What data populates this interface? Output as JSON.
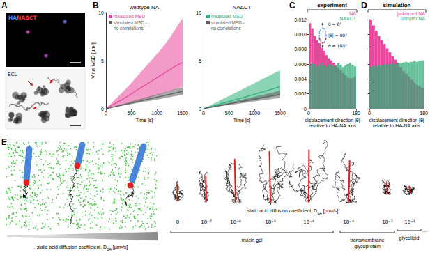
{
  "panel_labels": [
    "A",
    "B",
    "C",
    "D",
    "E"
  ],
  "panel_a": {
    "merge_label": [
      {
        "text": "HA",
        "color": "#4a8cff"
      },
      {
        "text": "NAΔCT",
        "color": "#ff3b3b"
      }
    ],
    "ecl_label": "ECL"
  },
  "headers": [
    "experiment",
    "simulation"
  ],
  "inset": {
    "labels": [
      "θ = 0°",
      "|θ| = 90°",
      "θ = 180°"
    ]
  },
  "panel_e": {
    "axis_label": {
      "text": "sialic acid diffusion coefficient, D",
      "subscript": "SA",
      "after": " [µm²/s]"
    },
    "coefficients": [
      "0",
      "10⁻⁷",
      "10⁻⁶",
      "10⁻⁵",
      "10⁻⁴",
      "10⁻³",
      "10⁻²",
      "10⁻¹"
    ],
    "groups": [
      {
        "lines": [
          "mucin gel"
        ]
      },
      {
        "lines": [
          "transmembrane",
          "glycoprotein"
        ]
      },
      {
        "lines": [
          "glycolipid"
        ]
      }
    ],
    "continuation": "..."
  },
  "chart_data": [
    {
      "type": "line",
      "title": "wildtype NA",
      "xlabel": "Time [s]",
      "ylabel": "Virus MSD [µm²]",
      "x": [
        0,
        150,
        300,
        450,
        600,
        750,
        900,
        1050,
        1200,
        1350,
        1500
      ],
      "series": [
        {
          "name": "measured MSD",
          "color": "#e8489b",
          "values": [
            0,
            0.45,
            0.9,
            1.4,
            1.9,
            2.4,
            2.9,
            3.4,
            3.9,
            4.4,
            4.8
          ],
          "lower": [
            0,
            0.2,
            0.4,
            0.6,
            0.8,
            1.0,
            1.25,
            1.5,
            1.75,
            2.0,
            2.3
          ],
          "upper": [
            0,
            0.8,
            1.6,
            2.4,
            3.3,
            4.2,
            5.1,
            6.0,
            7.0,
            8.2,
            9.4
          ]
        },
        {
          "name": "simulated MSD - no correlations",
          "color": "#606060",
          "values": [
            0,
            0.18,
            0.36,
            0.54,
            0.72,
            0.9,
            1.08,
            1.26,
            1.44,
            1.62,
            1.8
          ],
          "lower": [
            0,
            0.14,
            0.29,
            0.43,
            0.58,
            0.72,
            0.86,
            1.0,
            1.15,
            1.3,
            1.44
          ],
          "upper": [
            0,
            0.23,
            0.45,
            0.68,
            0.9,
            1.13,
            1.35,
            1.58,
            1.8,
            2.03,
            2.25
          ]
        }
      ],
      "xlim": [
        0,
        1500
      ],
      "xticks": [
        0,
        500,
        1000,
        1500
      ],
      "ylim": [
        0,
        10
      ],
      "yticks": [
        0,
        5,
        10
      ],
      "grid": false,
      "legend": "top-left"
    },
    {
      "type": "line",
      "title": "NAΔCT",
      "xlabel": "Time [s]",
      "x": [
        0,
        150,
        300,
        450,
        600,
        750,
        900,
        1050,
        1200,
        1350,
        1500
      ],
      "series": [
        {
          "name": "measured MSD",
          "color": "#2fae78",
          "values": [
            0,
            0.22,
            0.45,
            0.68,
            0.9,
            1.12,
            1.35,
            1.58,
            1.8,
            2.05,
            2.3
          ],
          "lower": [
            0,
            0.13,
            0.27,
            0.4,
            0.55,
            0.68,
            0.82,
            0.95,
            1.1,
            1.25,
            1.4
          ],
          "upper": [
            0,
            0.4,
            0.8,
            1.2,
            1.6,
            2.0,
            2.4,
            2.8,
            3.2,
            3.6,
            4.0
          ]
        },
        {
          "name": "simulated MSD - no correlations",
          "color": "#606060",
          "values": [
            0,
            0.15,
            0.3,
            0.45,
            0.6,
            0.75,
            0.9,
            1.05,
            1.2,
            1.35,
            1.5
          ],
          "lower": [
            0,
            0.11,
            0.23,
            0.34,
            0.45,
            0.56,
            0.68,
            0.79,
            0.9,
            1.01,
            1.13
          ],
          "upper": [
            0,
            0.19,
            0.38,
            0.56,
            0.75,
            0.94,
            1.13,
            1.31,
            1.5,
            1.69,
            1.88
          ]
        }
      ],
      "xlim": [
        0,
        1500
      ],
      "xticks": [
        0,
        500,
        1000,
        1500
      ],
      "ylim": [
        0,
        10
      ],
      "yticks": [
        0,
        5,
        10
      ],
      "grid": false,
      "legend": "top-left"
    },
    {
      "type": "histogram",
      "xlabel": "displacement direction |θ|\nrelative to HA-NA axis",
      "bins": [
        0,
        9,
        18,
        27,
        36,
        45,
        54,
        63,
        72,
        81,
        90,
        99,
        108,
        117,
        126,
        135,
        144,
        153,
        162,
        171,
        180
      ],
      "series": [
        {
          "name": "NA",
          "color": "#e8489b",
          "values": [
            0.0115,
            0.0108,
            0.0098,
            0.0092,
            0.0088,
            0.0082,
            0.0078,
            0.0072,
            0.0068,
            0.0065,
            0.0062,
            0.0058,
            0.0055,
            0.0052,
            0.0048,
            0.0045,
            0.0042,
            0.004,
            0.0041,
            0.0043
          ]
        },
        {
          "name": "NAΔCT",
          "color": "#2fae78",
          "values": [
            0.0058,
            0.0062,
            0.006,
            0.0057,
            0.0059,
            0.0061,
            0.0058,
            0.0056,
            0.006,
            0.0059,
            0.0057,
            0.0058,
            0.0061,
            0.0059,
            0.0056,
            0.0058,
            0.006,
            0.0062,
            0.0059,
            0.0057
          ]
        }
      ],
      "xlim": [
        0,
        180
      ],
      "xticks": [
        0,
        180
      ],
      "ylim": [
        0,
        0.012
      ],
      "yticks": [
        0,
        0.002,
        0.004,
        0.006,
        0.008,
        {
          "value": 0.01,
          "label": "0.010"
        },
        0.012
      ],
      "grid": false,
      "legend": "top-right"
    },
    {
      "type": "histogram",
      "xlabel": "displacement direction |θ|\nrelative to HA-NA axis",
      "bins": [
        0,
        9,
        18,
        27,
        36,
        45,
        54,
        63,
        72,
        81,
        90,
        99,
        108,
        117,
        126,
        135,
        144,
        153,
        162,
        171,
        180
      ],
      "series": [
        {
          "name": "polarized NA",
          "color": "#e8489b",
          "values": [
            0.012,
            0.0112,
            0.0105,
            0.0098,
            0.0092,
            0.0087,
            0.0081,
            0.0076,
            0.0071,
            0.0066,
            0.0061,
            0.0056,
            0.0051,
            0.0047,
            0.0043,
            0.0039,
            0.0035,
            0.0032,
            0.003,
            0.0028
          ]
        },
        {
          "name": "uniform NA",
          "color": "#2fae78",
          "values": [
            0.0056,
            0.0058,
            0.0057,
            0.0059,
            0.0058,
            0.006,
            0.0059,
            0.006,
            0.0061,
            0.006,
            0.0062,
            0.0061,
            0.0062,
            0.0063,
            0.0062,
            0.0063,
            0.0064,
            0.0063,
            0.0064,
            0.0065
          ]
        }
      ],
      "xlim": [
        0,
        180
      ],
      "xticks": [
        0,
        180
      ],
      "ylim": [
        0,
        0.012
      ],
      "yticks": [
        0,
        0.002,
        0.004,
        0.006,
        0.008,
        0.01,
        0.012
      ],
      "grid": false,
      "legend": "top-right",
      "tick_labels": "x"
    }
  ]
}
